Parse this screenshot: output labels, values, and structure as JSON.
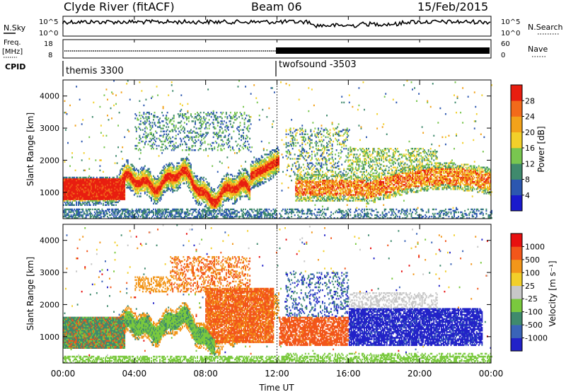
{
  "header": {
    "station": "Clyde River (fitACF)",
    "beam": "Beam 06",
    "date": "15/Feb/2015"
  },
  "status_panels": {
    "nsky_label": "N.Sky",
    "nsearch_label": "N.Search",
    "freq_label_line1": "Freq.",
    "freq_label_line2": "[MHz]",
    "nave_label": "Nave",
    "cpid_label": "CPID",
    "nsky_ticks": [
      "10^5",
      "10^0"
    ],
    "nsearch_ticks": [
      "10^5",
      "10^0"
    ],
    "freq_ticks": [
      "18",
      "8"
    ],
    "nave_ticks": [
      "60",
      "0"
    ],
    "cpid_segments": [
      {
        "name": "themis 3300",
        "start_hour": 0,
        "end_hour": 12
      },
      {
        "name": "twofsound -3503",
        "start_hour": 12,
        "end_hour": 24
      }
    ]
  },
  "chart_data": [
    {
      "type": "heatmap",
      "title": "",
      "ylabel": "Slant Range [km]",
      "xlabel": "",
      "xlim": [
        0,
        24
      ],
      "ylim": [
        180,
        4500
      ],
      "yticks": [
        "1000",
        "2000",
        "3000",
        "4000"
      ],
      "colorbar": {
        "label": "Power [dB]",
        "ticks": [
          "4",
          "8",
          "12",
          "16",
          "20",
          "24",
          "28"
        ],
        "range": [
          0,
          32
        ],
        "colors": [
          "#1a1acd",
          "#2c57b0",
          "#3f8a6d",
          "#79c650",
          "#f2d02a",
          "#f2a21a",
          "#f26a1a",
          "#e81e10"
        ]
      }
    },
    {
      "type": "heatmap",
      "title": "",
      "ylabel": "Slant Range [km]",
      "xlabel": "Time UT",
      "xlim": [
        0,
        24
      ],
      "ylim": [
        180,
        4500
      ],
      "yticks": [
        "1000",
        "2000",
        "3000",
        "4000"
      ],
      "xticks": [
        "00:00",
        "04:00",
        "08:00",
        "12:00",
        "16:00",
        "20:00",
        "00:00"
      ],
      "colorbar": {
        "label": "Velocity [m s⁻¹]",
        "ticks": [
          "1000",
          "500",
          "100",
          "25",
          "-25",
          "-100",
          "-500",
          "-1000"
        ],
        "colors": [
          "#2222c8",
          "#3a64b8",
          "#3f8a6d",
          "#7ac93e",
          "#c8c8c8",
          "#f2cf2a",
          "#f2961a",
          "#f2561a",
          "#e81010"
        ]
      }
    }
  ]
}
